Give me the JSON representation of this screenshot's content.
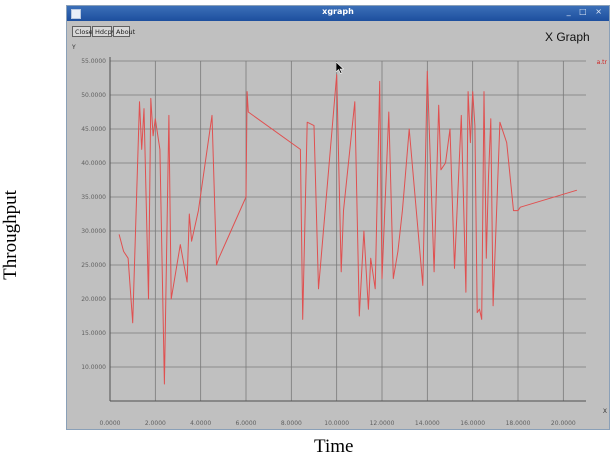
{
  "window": {
    "title": "xgraph",
    "controls": "_ □ ×",
    "buttons": {
      "close": "Close",
      "hdcpy": "Hdcpy",
      "about": "About"
    },
    "graph_label": "X Graph",
    "y_unit": "Y",
    "x_unit": "X",
    "legend": "a.tr"
  },
  "figure": {
    "ylabel": "Throughput",
    "xlabel": "Time"
  },
  "colors": {
    "line": "#e05050",
    "grid": "#7a7a7a",
    "plot_bg": "#c0c0c0"
  },
  "chart_data": {
    "type": "line",
    "xlim": [
      0,
      21
    ],
    "ylim": [
      5,
      55
    ],
    "x_ticks": [
      0,
      2,
      4,
      6,
      8,
      10,
      12,
      14,
      16,
      18,
      20
    ],
    "x_tick_labels": [
      "0.0000",
      "2.0000",
      "4.0000",
      "6.0000",
      "8.0000",
      "10.0000",
      "12.0000",
      "14.0000",
      "16.0000",
      "18.0000",
      "20.0000"
    ],
    "y_ticks": [
      10,
      15,
      20,
      25,
      30,
      35,
      40,
      45,
      50,
      55
    ],
    "y_tick_labels": [
      "10.0000",
      "15.0000",
      "20.0000",
      "25.0000",
      "30.0000",
      "35.0000",
      "40.0000",
      "45.0000",
      "50.0000",
      "55.0000"
    ],
    "grid": true,
    "series": [
      {
        "name": "a.tr",
        "x": [
          0.4,
          0.6,
          0.8,
          1.0,
          1.1,
          1.3,
          1.4,
          1.5,
          1.7,
          1.8,
          1.9,
          2.0,
          2.2,
          2.4,
          2.6,
          2.7,
          2.8,
          3.1,
          3.4,
          3.5,
          3.6,
          3.9,
          4.5,
          4.7,
          4.8,
          6.0,
          6.05,
          6.1,
          8.4,
          8.5,
          8.7,
          9.0,
          9.2,
          9.8,
          10.0,
          10.2,
          10.3,
          10.8,
          11.0,
          11.2,
          11.4,
          11.5,
          11.7,
          11.9,
          12.0,
          12.3,
          12.5,
          12.7,
          12.9,
          13.0,
          13.2,
          13.8,
          14.0,
          14.3,
          14.5,
          14.6,
          14.8,
          15.0,
          15.2,
          15.5,
          15.7,
          15.8,
          15.9,
          16.0,
          16.1,
          16.2,
          16.3,
          16.4,
          16.5,
          16.6,
          16.7,
          16.8,
          16.9,
          17.2,
          17.5,
          17.8,
          18.0,
          18.1,
          20.6
        ],
        "y": [
          29.5,
          27,
          26,
          16.5,
          27,
          49,
          42,
          48,
          20,
          49.5,
          44,
          46.5,
          42,
          7.5,
          47,
          20,
          22,
          28,
          22.5,
          32.5,
          28.5,
          33,
          47,
          25,
          26,
          35,
          50.5,
          47.5,
          42,
          17,
          46,
          45.5,
          21.5,
          45,
          53,
          24,
          33,
          49,
          17.5,
          30,
          18.5,
          26,
          21.5,
          52,
          23,
          47.5,
          23,
          27,
          33,
          37,
          45,
          22,
          53.5,
          24,
          48.5,
          39,
          40,
          45,
          24.5,
          47,
          21,
          50.5,
          43,
          50.5,
          45.5,
          18,
          18.5,
          17,
          50.5,
          26,
          38,
          46.5,
          19,
          46,
          43,
          33,
          33,
          33.5,
          36
        ]
      }
    ]
  }
}
